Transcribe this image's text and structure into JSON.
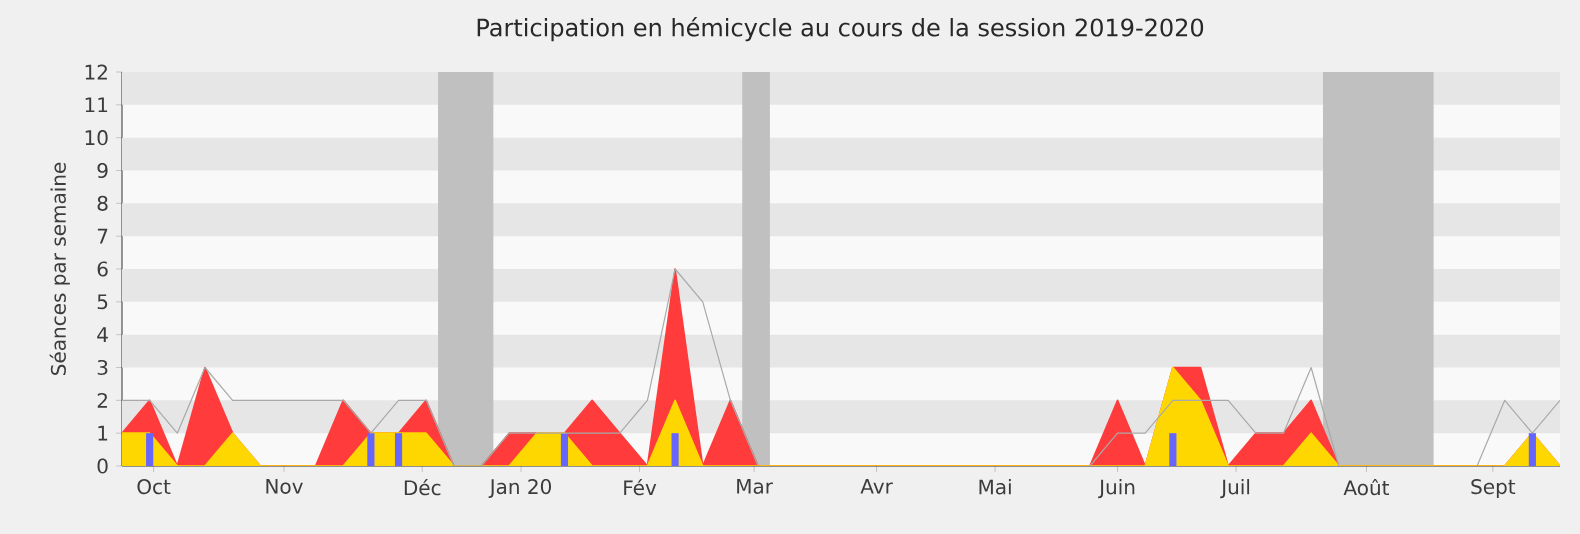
{
  "chart_data": {
    "type": "area",
    "title": "Participation en hémicycle au cours de la session 2019-2020",
    "ylabel": "Séances par semaine",
    "x": [
      "2019-09-23",
      "2019-09-30",
      "2019-10-07",
      "2019-10-14",
      "2019-10-21",
      "2019-10-28",
      "2019-11-04",
      "2019-11-11",
      "2019-11-18",
      "2019-11-25",
      "2019-12-02",
      "2019-12-09",
      "2019-12-16",
      "2019-12-23",
      "2019-12-30",
      "2020-01-06",
      "2020-01-13",
      "2020-01-20",
      "2020-01-27",
      "2020-02-03",
      "2020-02-10",
      "2020-02-17",
      "2020-02-24",
      "2020-03-02",
      "2020-03-09",
      "2020-03-16",
      "2020-03-23",
      "2020-03-30",
      "2020-04-06",
      "2020-04-13",
      "2020-04-20",
      "2020-04-27",
      "2020-05-04",
      "2020-05-11",
      "2020-05-18",
      "2020-05-25",
      "2020-06-01",
      "2020-06-08",
      "2020-06-15",
      "2020-06-22",
      "2020-06-29",
      "2020-07-06",
      "2020-07-13",
      "2020-07-20",
      "2020-07-27",
      "2020-08-03",
      "2020-08-10",
      "2020-08-17",
      "2020-08-24",
      "2020-08-31",
      "2020-09-07",
      "2020-09-14",
      "2020-09-21"
    ],
    "series": [
      {
        "color": "#ff3b3b",
        "values": [
          1,
          2,
          0,
          3,
          1,
          0,
          0,
          0,
          2,
          1,
          1,
          2,
          0,
          0,
          1,
          1,
          1,
          2,
          1,
          0,
          6,
          0,
          2,
          0,
          0,
          0,
          0,
          0,
          0,
          0,
          0,
          0,
          0,
          0,
          0,
          0,
          2,
          0,
          3,
          3,
          0,
          1,
          1,
          2,
          0,
          0,
          0,
          0,
          0,
          0,
          0,
          1,
          0
        ]
      },
      {
        "color": "#ffd700",
        "values": [
          1,
          1,
          0,
          0,
          1,
          0,
          0,
          0,
          0,
          1,
          1,
          1,
          0,
          0,
          0,
          1,
          1,
          0,
          0,
          0,
          2,
          0,
          0,
          0,
          0,
          0,
          0,
          0,
          0,
          0,
          0,
          0,
          0,
          0,
          0,
          0,
          0,
          0,
          3,
          2,
          0,
          0,
          0,
          1,
          0,
          0,
          0,
          0,
          0,
          0,
          0,
          1,
          0
        ]
      },
      {
        "type": "bar",
        "color": "#6666ff",
        "values": [
          0,
          1,
          0,
          0,
          0,
          0,
          0,
          0,
          0,
          1,
          1,
          0,
          0,
          0,
          0,
          0,
          1,
          0,
          0,
          0,
          1,
          0,
          0,
          0,
          0,
          0,
          0,
          0,
          0,
          0,
          0,
          0,
          0,
          0,
          0,
          0,
          0,
          0,
          1,
          0,
          0,
          0,
          0,
          0,
          0,
          0,
          0,
          0,
          0,
          0,
          0,
          1,
          0
        ]
      },
      {
        "type": "line",
        "color": "#a9a9a9",
        "values": [
          2,
          2,
          1,
          3,
          2,
          2,
          2,
          2,
          2,
          1,
          2,
          2,
          0,
          0,
          1,
          1,
          1,
          1,
          1,
          2,
          6,
          5,
          2,
          0,
          null,
          null,
          null,
          null,
          null,
          null,
          null,
          null,
          null,
          null,
          null,
          0,
          1,
          1,
          2,
          2,
          2,
          1,
          1,
          3,
          0,
          null,
          null,
          null,
          null,
          0,
          2,
          1,
          2
        ]
      }
    ],
    "xlim": [
      "2019-09-23",
      "2020-09-21"
    ],
    "ylim": [
      0,
      12
    ],
    "yticks": [
      0,
      1,
      2,
      3,
      4,
      5,
      6,
      7,
      8,
      9,
      10,
      11,
      12
    ],
    "xticks": [
      {
        "value": "2019-10-01",
        "label": "Oct"
      },
      {
        "value": "2019-11-03",
        "label": "Nov"
      },
      {
        "value": "2019-12-08",
        "label": "Déc"
      },
      {
        "value": "2020-01-02",
        "label": "Jan 20"
      },
      {
        "value": "2020-02-01",
        "label": "Fév"
      },
      {
        "value": "2020-03-01",
        "label": "Mar"
      },
      {
        "value": "2020-04-01",
        "label": "Avr"
      },
      {
        "value": "2020-05-01",
        "label": "Mai"
      },
      {
        "value": "2020-06-01",
        "label": "Juin"
      },
      {
        "value": "2020-07-01",
        "label": "Juil"
      },
      {
        "value": "2020-08-03",
        "label": "Août"
      },
      {
        "value": "2020-09-04",
        "label": "Sept"
      }
    ],
    "bands": [
      {
        "axis": "y",
        "from": 1,
        "to": 2,
        "color": "#e6e6e6"
      },
      {
        "axis": "y",
        "from": 3,
        "to": 4,
        "color": "#e6e6e6"
      },
      {
        "axis": "y",
        "from": 5,
        "to": 6,
        "color": "#e6e6e6"
      },
      {
        "axis": "y",
        "from": 7,
        "to": 8,
        "color": "#e6e6e6"
      },
      {
        "axis": "y",
        "from": 9,
        "to": 10,
        "color": "#e6e6e6"
      },
      {
        "axis": "y",
        "from": 11,
        "to": 12,
        "color": "#e6e6e6"
      },
      {
        "axis": "x",
        "from": "2019-12-12",
        "to": "2019-12-26",
        "color": "#c0c0c0"
      },
      {
        "axis": "x",
        "from": "2020-02-27",
        "to": "2020-03-05",
        "color": "#c0c0c0"
      },
      {
        "axis": "x",
        "from": "2020-07-23",
        "to": "2020-08-20",
        "color": "#c0c0c0"
      }
    ]
  }
}
